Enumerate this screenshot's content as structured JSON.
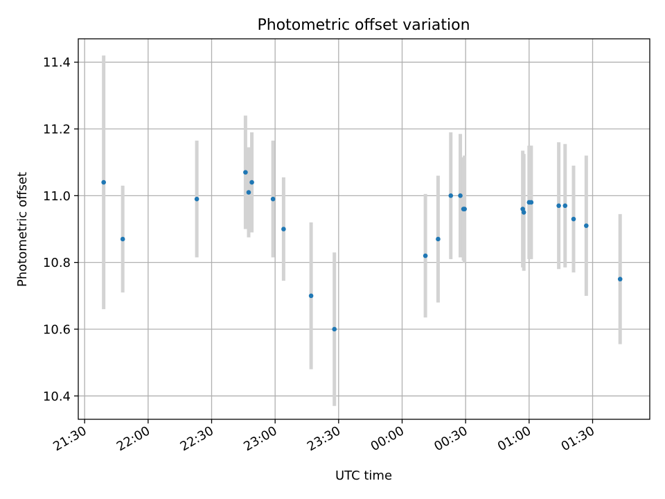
{
  "chart_data": {
    "type": "scatter",
    "title": "Photometric offset variation",
    "xlabel": "UTC time",
    "ylabel": "Photometric offset",
    "x_tick_labels": [
      "21:30",
      "22:00",
      "22:30",
      "23:00",
      "23:30",
      "00:00",
      "00:30",
      "01:00",
      "01:30"
    ],
    "y_tick_labels": [
      "10.4",
      "10.6",
      "10.8",
      "11.0",
      "11.2",
      "11.4"
    ],
    "x_ticks": [
      "21:30",
      "22:00",
      "22:30",
      "23:00",
      "23:30",
      "00:00",
      "00:30",
      "01:00",
      "01:30"
    ],
    "y_ticks": [
      10.4,
      10.6,
      10.8,
      11.0,
      11.2,
      11.4
    ],
    "xlim": [
      "21:27",
      "01:57"
    ],
    "ylim": [
      10.33,
      11.47
    ],
    "grid": true,
    "colors": {
      "point": "#1f77b4",
      "errorbar": "#d3d3d3",
      "grid": "#b0b0b0"
    },
    "points": [
      {
        "x": "21:39",
        "y": 11.04,
        "yerr": 0.38
      },
      {
        "x": "21:48",
        "y": 10.87,
        "yerr": 0.16
      },
      {
        "x": "22:23",
        "y": 10.99,
        "yerr": 0.175
      },
      {
        "x": "22:46",
        "y": 11.07,
        "yerr": 0.17
      },
      {
        "x": "22:47.5",
        "y": 11.01,
        "yerr": 0.135
      },
      {
        "x": "22:49",
        "y": 11.04,
        "yerr": 0.15
      },
      {
        "x": "22:59",
        "y": 10.99,
        "yerr": 0.175
      },
      {
        "x": "23:04",
        "y": 10.9,
        "yerr": 0.155
      },
      {
        "x": "23:17",
        "y": 10.7,
        "yerr": 0.22
      },
      {
        "x": "23:28",
        "y": 10.6,
        "yerr": 0.23
      },
      {
        "x": "00:11",
        "y": 10.82,
        "yerr": 0.185
      },
      {
        "x": "00:17",
        "y": 10.87,
        "yerr": 0.19
      },
      {
        "x": "00:23",
        "y": 11.0,
        "yerr": 0.19
      },
      {
        "x": "00:27.5",
        "y": 11.0,
        "yerr": 0.185
      },
      {
        "x": "00:29",
        "y": 10.96,
        "yerr": 0.155
      },
      {
        "x": "00:29.5",
        "y": 10.96,
        "yerr": 0.16
      },
      {
        "x": "00:57",
        "y": 10.96,
        "yerr": 0.175
      },
      {
        "x": "00:57.5",
        "y": 10.95,
        "yerr": 0.175
      },
      {
        "x": "01:00",
        "y": 10.98,
        "yerr": 0.17
      },
      {
        "x": "01:01",
        "y": 10.98,
        "yerr": 0.17
      },
      {
        "x": "01:14",
        "y": 10.97,
        "yerr": 0.19
      },
      {
        "x": "01:17",
        "y": 10.97,
        "yerr": 0.185
      },
      {
        "x": "01:21",
        "y": 10.93,
        "yerr": 0.16
      },
      {
        "x": "01:27",
        "y": 10.91,
        "yerr": 0.21
      },
      {
        "x": "01:43",
        "y": 10.75,
        "yerr": 0.195
      }
    ]
  }
}
